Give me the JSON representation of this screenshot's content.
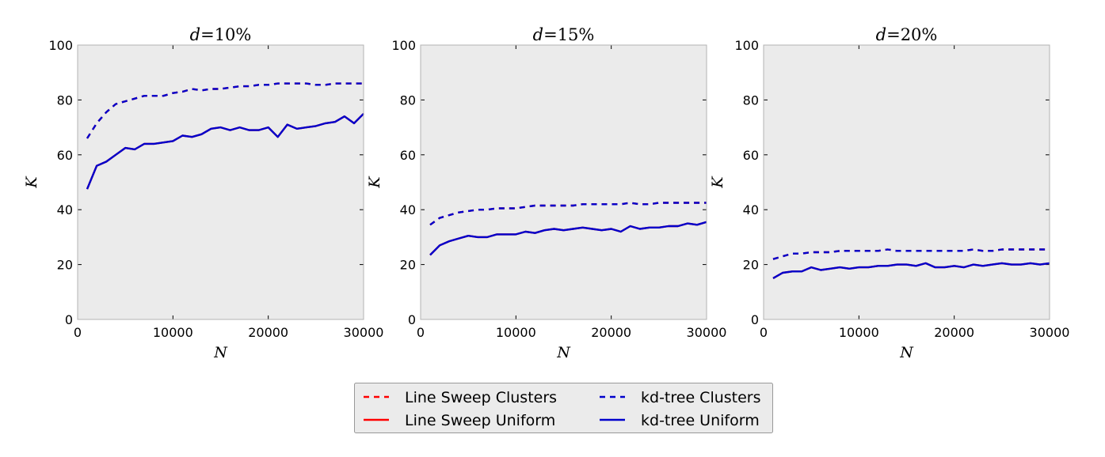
{
  "chart_data": [
    {
      "type": "line",
      "title": "d = 10%",
      "title_var": "d",
      "title_eq": "=",
      "title_val": "10%",
      "xlabel": "N",
      "ylabel": "K",
      "xlim": [
        0,
        30000
      ],
      "ylim": [
        0,
        100
      ],
      "xticks": [
        "0",
        "10000",
        "20000",
        "30000"
      ],
      "yticks": [
        "0",
        "20",
        "40",
        "60",
        "80",
        "100"
      ],
      "grid": false,
      "x": [
        1000,
        2000,
        3000,
        4000,
        5000,
        6000,
        7000,
        8000,
        9000,
        10000,
        11000,
        12000,
        13000,
        14000,
        15000,
        16000,
        17000,
        18000,
        19000,
        20000,
        21000,
        22000,
        23000,
        24000,
        25000,
        26000,
        27000,
        28000,
        29000,
        30000
      ],
      "series": [
        {
          "name": "Line Sweep Clusters",
          "color": "#ff0000",
          "style": "dashed",
          "values": [
            66,
            71.5,
            75.5,
            78.5,
            79.5,
            80.5,
            81.5,
            81.5,
            81.5,
            82.5,
            83,
            84,
            83.5,
            84,
            84,
            84.5,
            85,
            85,
            85.5,
            85.5,
            86,
            86,
            86,
            86,
            85.5,
            85.5,
            86,
            86,
            86,
            86
          ]
        },
        {
          "name": "Line Sweep Uniform",
          "color": "#ff0000",
          "style": "solid",
          "values": [
            47.5,
            56,
            57.5,
            60,
            62.5,
            62,
            64,
            64,
            64.5,
            65,
            67,
            66.5,
            67.5,
            69.5,
            70,
            69,
            70,
            69,
            69,
            70,
            66.5,
            71,
            69.5,
            70,
            70.5,
            71.5,
            72,
            74,
            71.5,
            75
          ]
        },
        {
          "name": "kd-tree Clusters",
          "color": "#0000cc",
          "style": "dashed",
          "values": [
            66,
            71.5,
            75.5,
            78.5,
            79.5,
            80.5,
            81.5,
            81.5,
            81.5,
            82.5,
            83,
            84,
            83.5,
            84,
            84,
            84.5,
            85,
            85,
            85.5,
            85.5,
            86,
            86,
            86,
            86,
            85.5,
            85.5,
            86,
            86,
            86,
            86
          ]
        },
        {
          "name": "kd-tree Uniform",
          "color": "#0000cc",
          "style": "solid",
          "values": [
            47.5,
            56,
            57.5,
            60,
            62.5,
            62,
            64,
            64,
            64.5,
            65,
            67,
            66.5,
            67.5,
            69.5,
            70,
            69,
            70,
            69,
            69,
            70,
            66.5,
            71,
            69.5,
            70,
            70.5,
            71.5,
            72,
            74,
            71.5,
            75
          ]
        }
      ]
    },
    {
      "type": "line",
      "title": "d = 15%",
      "title_var": "d",
      "title_eq": "=",
      "title_val": "15%",
      "xlabel": "N",
      "ylabel": "K",
      "xlim": [
        0,
        30000
      ],
      "ylim": [
        0,
        100
      ],
      "xticks": [
        "0",
        "10000",
        "20000",
        "30000"
      ],
      "yticks": [
        "0",
        "20",
        "40",
        "60",
        "80",
        "100"
      ],
      "grid": false,
      "x": [
        1000,
        2000,
        3000,
        4000,
        5000,
        6000,
        7000,
        8000,
        9000,
        10000,
        11000,
        12000,
        13000,
        14000,
        15000,
        16000,
        17000,
        18000,
        19000,
        20000,
        21000,
        22000,
        23000,
        24000,
        25000,
        26000,
        27000,
        28000,
        29000,
        30000
      ],
      "series": [
        {
          "name": "Line Sweep Clusters",
          "color": "#ff0000",
          "style": "dashed",
          "values": [
            34.5,
            37,
            38,
            39,
            39.5,
            40,
            40,
            40.5,
            40.5,
            40.5,
            41,
            41.5,
            41.5,
            41.5,
            41.5,
            41.5,
            42,
            42,
            42,
            42,
            42,
            42.5,
            42,
            42,
            42.5,
            42.5,
            42.5,
            42.5,
            42.5,
            42.5
          ]
        },
        {
          "name": "Line Sweep Uniform",
          "color": "#ff0000",
          "style": "solid",
          "values": [
            23.5,
            27,
            28.5,
            29.5,
            30.5,
            30,
            30,
            31,
            31,
            31,
            32,
            31.5,
            32.5,
            33,
            32.5,
            33,
            33.5,
            33,
            32.5,
            33,
            32,
            34,
            33,
            33.5,
            33.5,
            34,
            34,
            35,
            34.5,
            35.5
          ]
        },
        {
          "name": "kd-tree Clusters",
          "color": "#0000cc",
          "style": "dashed",
          "values": [
            34.5,
            37,
            38,
            39,
            39.5,
            40,
            40,
            40.5,
            40.5,
            40.5,
            41,
            41.5,
            41.5,
            41.5,
            41.5,
            41.5,
            42,
            42,
            42,
            42,
            42,
            42.5,
            42,
            42,
            42.5,
            42.5,
            42.5,
            42.5,
            42.5,
            42.5
          ]
        },
        {
          "name": "kd-tree Uniform",
          "color": "#0000cc",
          "style": "solid",
          "values": [
            23.5,
            27,
            28.5,
            29.5,
            30.5,
            30,
            30,
            31,
            31,
            31,
            32,
            31.5,
            32.5,
            33,
            32.5,
            33,
            33.5,
            33,
            32.5,
            33,
            32,
            34,
            33,
            33.5,
            33.5,
            34,
            34,
            35,
            34.5,
            35.5
          ]
        }
      ]
    },
    {
      "type": "line",
      "title": "d = 20%",
      "title_var": "d",
      "title_eq": "=",
      "title_val": "20%",
      "xlabel": "N",
      "ylabel": "K",
      "xlim": [
        0,
        30000
      ],
      "ylim": [
        0,
        100
      ],
      "xticks": [
        "0",
        "10000",
        "20000",
        "30000"
      ],
      "yticks": [
        "0",
        "20",
        "40",
        "60",
        "80",
        "100"
      ],
      "grid": false,
      "x": [
        1000,
        2000,
        3000,
        4000,
        5000,
        6000,
        7000,
        8000,
        9000,
        10000,
        11000,
        12000,
        13000,
        14000,
        15000,
        16000,
        17000,
        18000,
        19000,
        20000,
        21000,
        22000,
        23000,
        24000,
        25000,
        26000,
        27000,
        28000,
        29000,
        30000
      ],
      "series": [
        {
          "name": "Line Sweep Clusters",
          "color": "#ff0000",
          "style": "dashed",
          "values": [
            22,
            23,
            24,
            24,
            24.5,
            24.5,
            24.5,
            25,
            25,
            25,
            25,
            25,
            25.5,
            25,
            25,
            25,
            25,
            25,
            25,
            25,
            25,
            25.5,
            25,
            25,
            25.5,
            25.5,
            25.5,
            25.5,
            25.5,
            25.5
          ]
        },
        {
          "name": "Line Sweep Uniform",
          "color": "#ff0000",
          "style": "solid",
          "values": [
            15,
            17,
            17.5,
            17.5,
            19,
            18,
            18.5,
            19,
            18.5,
            19,
            19,
            19.5,
            19.5,
            20,
            20,
            19.5,
            20.5,
            19,
            19,
            19.5,
            19,
            20,
            19.5,
            20,
            20.5,
            20,
            20,
            20.5,
            20,
            20.5
          ]
        },
        {
          "name": "kd-tree Clusters",
          "color": "#0000cc",
          "style": "dashed",
          "values": [
            22,
            23,
            24,
            24,
            24.5,
            24.5,
            24.5,
            25,
            25,
            25,
            25,
            25,
            25.5,
            25,
            25,
            25,
            25,
            25,
            25,
            25,
            25,
            25.5,
            25,
            25,
            25.5,
            25.5,
            25.5,
            25.5,
            25.5,
            25.5
          ]
        },
        {
          "name": "kd-tree Uniform",
          "color": "#0000cc",
          "style": "solid",
          "values": [
            15,
            17,
            17.5,
            17.5,
            19,
            18,
            18.5,
            19,
            18.5,
            19,
            19,
            19.5,
            19.5,
            20,
            20,
            19.5,
            20.5,
            19,
            19,
            19.5,
            19,
            20,
            19.5,
            20,
            20.5,
            20,
            20,
            20.5,
            20,
            20.5
          ]
        }
      ]
    }
  ],
  "legend": {
    "placement": "bottom-center",
    "columns": 2,
    "items": [
      {
        "label": "Line Sweep Clusters",
        "color": "#ff0000",
        "style": "dashed"
      },
      {
        "label": "Line Sweep Uniform",
        "color": "#ff0000",
        "style": "solid"
      },
      {
        "label": "kd-tree Clusters",
        "color": "#0000cc",
        "style": "dashed"
      },
      {
        "label": "kd-tree Uniform",
        "color": "#0000cc",
        "style": "solid"
      }
    ]
  },
  "colors": {
    "plot_background": "#ebebeb",
    "legend_background": "#ebebeb",
    "frame": "#b3b3b3"
  }
}
